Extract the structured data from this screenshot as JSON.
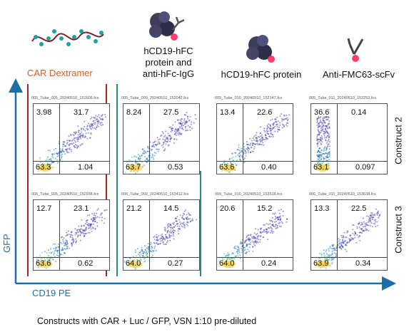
{
  "columns": [
    {
      "title": "CAR Dextramer",
      "icon": "dextramer-icon"
    },
    {
      "title": "hCD19-hFC protein and anti-hFc-IgG",
      "icon": "protein-antibody-icon"
    },
    {
      "title": "hCD19-hFC protein",
      "icon": "protein-icon"
    },
    {
      "title": "Anti-FMC63-scFv",
      "icon": "antibody-icon"
    }
  ],
  "title_lines": {
    "col2": [
      "hCD19-hFC",
      "protein and",
      "anti-hFc-IgG"
    ]
  },
  "rows": [
    {
      "label": "Construct 2",
      "plots": [
        {
          "file": "005_Tube_005_20240510_151606.fcs",
          "q1": "3.98",
          "q2": "31.7",
          "q3": "1.04",
          "q4": "63.3"
        },
        {
          "file": "005_Tube_009_20240510_152042.fcs",
          "q1": "8.24",
          "q2": "27.5",
          "q3": "0.53",
          "q4": "63.7"
        },
        {
          "file": "005_Tube_010_20240510_152147.fcs",
          "q1": "13.4",
          "q2": "22.6",
          "q3": "0.40",
          "q4": "63.6"
        },
        {
          "file": "005_Tube_011_20240510_152252.fcs",
          "q1": "36.6",
          "q2": "0.14",
          "q3": "0.097",
          "q4": "63.1"
        }
      ]
    },
    {
      "label": "Construct 3",
      "plots": [
        {
          "file": "006_Tube_005_20240510_152938.fcs",
          "q1": "12.7",
          "q2": "23.1",
          "q3": "0.62",
          "q4": "63.6"
        },
        {
          "file": "006_Tube_009_20240510_153412.fcs",
          "q1": "21.2",
          "q2": "14.5",
          "q3": "0.27",
          "q4": "64.0"
        },
        {
          "file": "006_Tube_010_20240510_153518.fcs",
          "q1": "20.6",
          "q2": "15.2",
          "q3": "0.24",
          "q4": "64.0"
        },
        {
          "file": "006_Tube_011_20240510_153638.fcs",
          "q1": "13.3",
          "q2": "22.5",
          "q3": "0.34",
          "q4": "63.9"
        }
      ]
    }
  ],
  "axes": {
    "x": "CD19 PE",
    "y": "GFP"
  },
  "footer": "Constructs with CAR + Luc / GFP, VSN 1:10 pre-diluted",
  "colors": {
    "axis": "#1b6fa8",
    "car_title": "#e05a1e",
    "red_bar": "#b02020",
    "teal_bar": "#2a8a7a"
  }
}
